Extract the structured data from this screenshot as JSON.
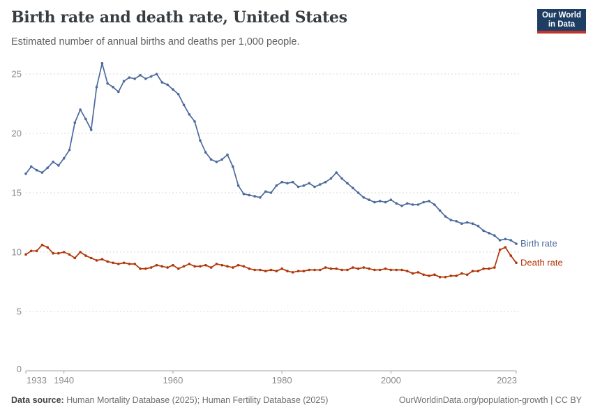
{
  "header": {
    "title": "Birth rate and death rate, United States",
    "subtitle": "Estimated number of annual births and deaths per 1,000 people.",
    "logo": {
      "line1": "Our World",
      "line2": "in Data",
      "bg_color": "#1d3d63",
      "accent_color": "#c0352b",
      "text_color": "#ffffff"
    }
  },
  "footer": {
    "source_label": "Data source:",
    "source_text": " Human Mortality Database (2025); Human Fertility Database (2025)",
    "right_text": "OurWorldinData.org/population-growth | CC BY"
  },
  "chart_data": {
    "type": "line",
    "title": "Birth rate and death rate, United States",
    "xlabel": "",
    "ylabel": "",
    "ylim": [
      0,
      26
    ],
    "yticks": [
      0,
      5,
      10,
      15,
      20,
      25
    ],
    "xticks": [
      1933,
      1940,
      1960,
      1980,
      2000,
      2023
    ],
    "grid": "horizontal-dashed",
    "legend_position": "end-of-line-labels",
    "axis_color": "#a5a5a5",
    "grid_color": "#d9d9d9",
    "tick_label_color": "#8a8a8a",
    "x": [
      1933,
      1934,
      1935,
      1936,
      1937,
      1938,
      1939,
      1940,
      1941,
      1942,
      1943,
      1944,
      1945,
      1946,
      1947,
      1948,
      1949,
      1950,
      1951,
      1952,
      1953,
      1954,
      1955,
      1956,
      1957,
      1958,
      1959,
      1960,
      1961,
      1962,
      1963,
      1964,
      1965,
      1966,
      1967,
      1968,
      1969,
      1970,
      1971,
      1972,
      1973,
      1974,
      1975,
      1976,
      1977,
      1978,
      1979,
      1980,
      1981,
      1982,
      1983,
      1984,
      1985,
      1986,
      1987,
      1988,
      1989,
      1990,
      1991,
      1992,
      1993,
      1994,
      1995,
      1996,
      1997,
      1998,
      1999,
      2000,
      2001,
      2002,
      2003,
      2004,
      2005,
      2006,
      2007,
      2008,
      2009,
      2010,
      2011,
      2012,
      2013,
      2014,
      2015,
      2016,
      2017,
      2018,
      2019,
      2020,
      2021,
      2022,
      2023
    ],
    "series": [
      {
        "name": "Birth rate",
        "color": "#4C6A9C",
        "values": [
          16.6,
          17.2,
          16.9,
          16.7,
          17.1,
          17.6,
          17.3,
          17.9,
          18.6,
          20.9,
          22.0,
          21.2,
          20.3,
          23.9,
          25.9,
          24.2,
          23.9,
          23.5,
          24.4,
          24.7,
          24.6,
          24.9,
          24.6,
          24.8,
          25.0,
          24.3,
          24.1,
          23.7,
          23.3,
          22.4,
          21.6,
          21.0,
          19.4,
          18.4,
          17.8,
          17.6,
          17.8,
          18.2,
          17.2,
          15.6,
          14.9,
          14.8,
          14.7,
          14.6,
          15.1,
          15.0,
          15.6,
          15.9,
          15.8,
          15.9,
          15.5,
          15.6,
          15.8,
          15.5,
          15.7,
          15.9,
          16.2,
          16.7,
          16.2,
          15.8,
          15.4,
          15.0,
          14.6,
          14.4,
          14.2,
          14.3,
          14.2,
          14.4,
          14.1,
          13.9,
          14.1,
          14.0,
          14.0,
          14.2,
          14.3,
          14.0,
          13.5,
          13.0,
          12.7,
          12.6,
          12.4,
          12.5,
          12.4,
          12.2,
          11.8,
          11.6,
          11.4,
          11.0,
          11.1,
          11.0,
          10.7
        ]
      },
      {
        "name": "Death rate",
        "color": "#B13507",
        "values": [
          9.8,
          10.1,
          10.1,
          10.6,
          10.4,
          9.9,
          9.9,
          10.0,
          9.8,
          9.5,
          10.0,
          9.7,
          9.5,
          9.3,
          9.4,
          9.2,
          9.1,
          9.0,
          9.1,
          9.0,
          9.0,
          8.6,
          8.6,
          8.7,
          8.9,
          8.8,
          8.7,
          8.9,
          8.6,
          8.8,
          9.0,
          8.8,
          8.8,
          8.9,
          8.7,
          9.0,
          8.9,
          8.8,
          8.7,
          8.9,
          8.8,
          8.6,
          8.5,
          8.5,
          8.4,
          8.5,
          8.4,
          8.6,
          8.4,
          8.3,
          8.4,
          8.4,
          8.5,
          8.5,
          8.5,
          8.7,
          8.6,
          8.6,
          8.5,
          8.5,
          8.7,
          8.6,
          8.7,
          8.6,
          8.5,
          8.5,
          8.6,
          8.5,
          8.5,
          8.5,
          8.4,
          8.2,
          8.3,
          8.1,
          8.0,
          8.1,
          7.9,
          7.9,
          8.0,
          8.0,
          8.2,
          8.1,
          8.4,
          8.4,
          8.6,
          8.6,
          8.7,
          10.2,
          10.4,
          9.7,
          9.1
        ]
      }
    ]
  }
}
